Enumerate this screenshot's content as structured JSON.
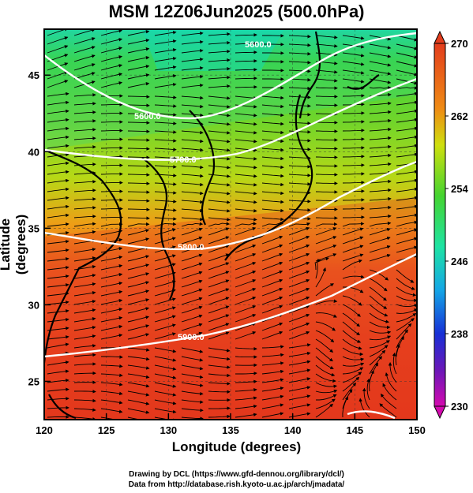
{
  "title": "MSM 12Z06Jun2025 (500.0hPa)",
  "axes": {
    "xlabel": "Longitude (degrees)",
    "ylabel": "Latitude  (degrees)",
    "xticks": [
      "120",
      "125",
      "130",
      "135",
      "140",
      "145",
      "150"
    ],
    "yticks": [
      "25",
      "30",
      "35",
      "40",
      "45"
    ]
  },
  "colorbar": {
    "ticks": [
      "270",
      "262",
      "254",
      "246",
      "238",
      "230"
    ],
    "range": [
      230,
      270
    ]
  },
  "contours": {
    "labels": [
      "5600.0",
      "5600.0",
      "5700.0",
      "5800.0",
      "5900.0"
    ]
  },
  "footer": {
    "line1": "Drawing by DCL (https://www.gfd-dennou.org/library/dcl/)",
    "line2": "Data from http://database.rish.kyoto-u.ac.jp/arch/jmadata/"
  },
  "colors": {
    "warm": "#e23a1e",
    "mid": "#35c82a",
    "cool": "#14d7a0",
    "contour": "#ffffff",
    "vector": "#000000"
  }
}
